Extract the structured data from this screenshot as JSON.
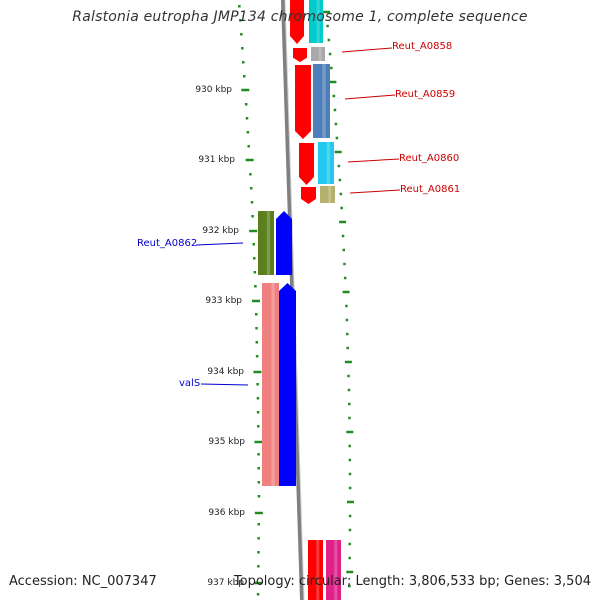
{
  "title": "Ralstonia eutropha JMP134 chromosome 1, complete sequence",
  "footer": {
    "accession": "Accession: NC_007347",
    "summary": "Topology: circular; Length: 3,806,533 bp; Genes: 3,504"
  },
  "kbp_labels": [
    "930 kbp",
    "931 kbp",
    "932 kbp",
    "933 kbp",
    "934 kbp",
    "935 kbp",
    "936 kbp",
    "937 kbp"
  ],
  "gene_labels": [
    {
      "text": "Reut_A0858",
      "color": "#cc0000"
    },
    {
      "text": "Reut_A0859",
      "color": "#cc0000"
    },
    {
      "text": "Reut_A0860",
      "color": "#cc0000"
    },
    {
      "text": "Reut_A0861",
      "color": "#cc0000"
    },
    {
      "text": "Reut_A0862",
      "color": "#0000cc"
    },
    {
      "text": "valS",
      "color": "#0000cc"
    }
  ],
  "colors": {
    "backbone": "#808080",
    "tick": "#228b22",
    "forward_cds": "#ff0000",
    "reverse_cds": "#0000ff",
    "cyan": "#00cccc",
    "steel_blue": "#4f7fb8",
    "light_cyan": "#22c8ee",
    "gray": "#a9a9a9",
    "olive": "#b5b06b",
    "olive_green": "#5b7f1c",
    "salmon": "#f08080",
    "magenta": "#e0218a"
  }
}
